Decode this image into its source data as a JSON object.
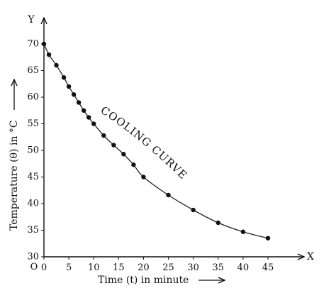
{
  "chart_data": {
    "type": "scatter",
    "xlabel": "Time (t) in minute",
    "ylabel": "Temperature (θ) in °C",
    "x_axis_letter": "X",
    "y_axis_letter": "Y",
    "origin_label": "O",
    "annotation": "COOLING CURVE",
    "xlim": [
      0,
      45
    ],
    "ylim": [
      30,
      70
    ],
    "x_ticks": [
      0,
      5,
      10,
      15,
      20,
      25,
      30,
      35,
      40,
      45
    ],
    "y_ticks": [
      30,
      35,
      40,
      45,
      50,
      55,
      60,
      65,
      70
    ],
    "grid": false,
    "series": [
      {
        "x": [
          0,
          1,
          2.5,
          4,
          5,
          6,
          7,
          8,
          9,
          10,
          12,
          14,
          16,
          18,
          20,
          25,
          30,
          35,
          40,
          45
        ],
        "y": [
          70,
          68,
          66,
          63.7,
          62,
          60.5,
          59,
          57.5,
          56.2,
          55,
          52.8,
          51,
          49.3,
          47.3,
          45,
          41.6,
          38.8,
          36.4,
          34.7,
          33.5
        ]
      }
    ]
  }
}
